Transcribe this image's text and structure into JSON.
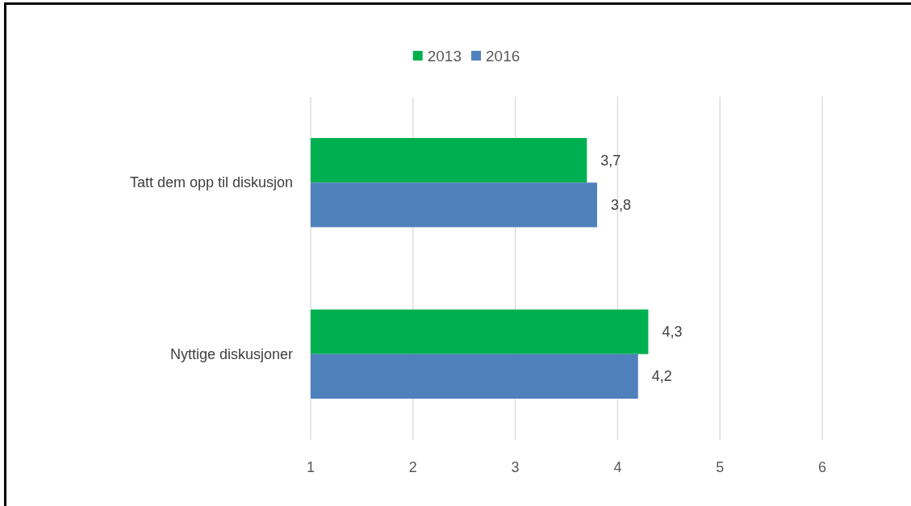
{
  "chart_data": {
    "type": "bar",
    "orientation": "horizontal",
    "categories": [
      "Tatt dem opp til diskusjon",
      "Nyttige diskusjoner"
    ],
    "series": [
      {
        "name": "2013",
        "color": "#00b050",
        "values": [
          3.7,
          4.3
        ],
        "value_labels": [
          "3,7",
          "4,3"
        ]
      },
      {
        "name": "2016",
        "color": "#4f81bd",
        "values": [
          3.8,
          4.2
        ],
        "value_labels": [
          "3,8",
          "4,2"
        ]
      }
    ],
    "xlim": [
      1,
      6
    ],
    "xticks": [
      1,
      2,
      3,
      4,
      5,
      6
    ],
    "grid": "x",
    "legend": "top"
  }
}
